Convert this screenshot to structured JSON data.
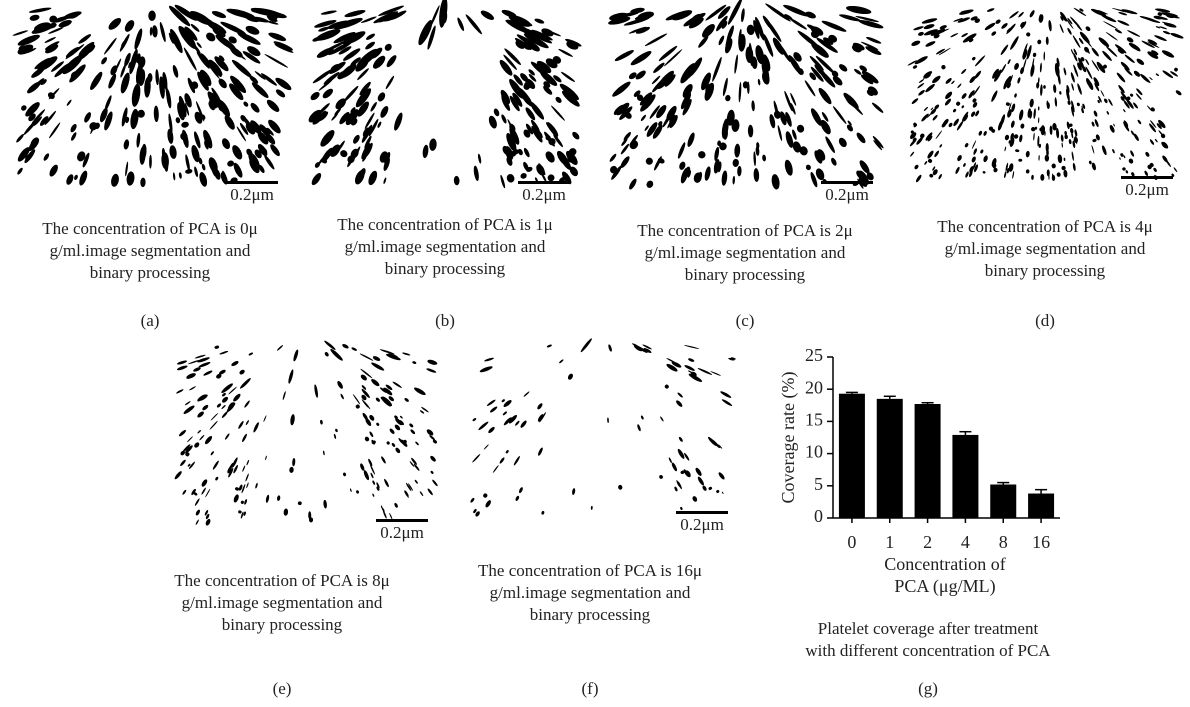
{
  "panels": [
    {
      "scale": "0.2μm",
      "caption": [
        "The concentration of PCA is 0μ",
        "g/ml.image segmentation and",
        "binary processing"
      ],
      "label": "(a)"
    },
    {
      "scale": "0.2μm",
      "caption": [
        "The concentration of PCA is 1μ",
        "g/ml.image segmentation and",
        "binary processing"
      ],
      "label": "(b)"
    },
    {
      "scale": "0.2μm",
      "caption": [
        "The concentration of PCA is 2μ",
        "g/ml.image segmentation and",
        "binary processing"
      ],
      "label": "(c)"
    },
    {
      "scale": "0.2μm",
      "caption": [
        "The concentration of PCA is 4μ",
        "g/ml.image segmentation and",
        "binary processing"
      ],
      "label": "(d)"
    },
    {
      "scale": "0.2μm",
      "caption": [
        "The concentration of PCA is 8μ",
        "g/ml.image segmentation and",
        "binary processing"
      ],
      "label": "(e)"
    },
    {
      "scale": "0.2μm",
      "caption": [
        "The concentration of PCA is 16μ",
        "g/ml.image segmentation and",
        "binary processing"
      ],
      "label": "(f)"
    }
  ],
  "chart_data": {
    "type": "bar",
    "ylabel": "Coverage rate (%)",
    "xlabel": [
      "Concentration of",
      "PCA (μg/ML)"
    ],
    "categories": [
      "0",
      "1",
      "2",
      "4",
      "8",
      "16"
    ],
    "values": [
      19.3,
      18.5,
      17.7,
      12.9,
      5.2,
      3.8
    ],
    "errors": [
      0.2,
      0.4,
      0.2,
      0.5,
      0.3,
      0.6
    ],
    "color": "#000000",
    "ylim": [
      0,
      25
    ],
    "yticks": [
      0,
      5,
      10,
      15,
      20,
      25
    ],
    "caption": [
      "Platelet coverage after treatment",
      "with different concentration of PCA"
    ],
    "label": "(g)"
  }
}
